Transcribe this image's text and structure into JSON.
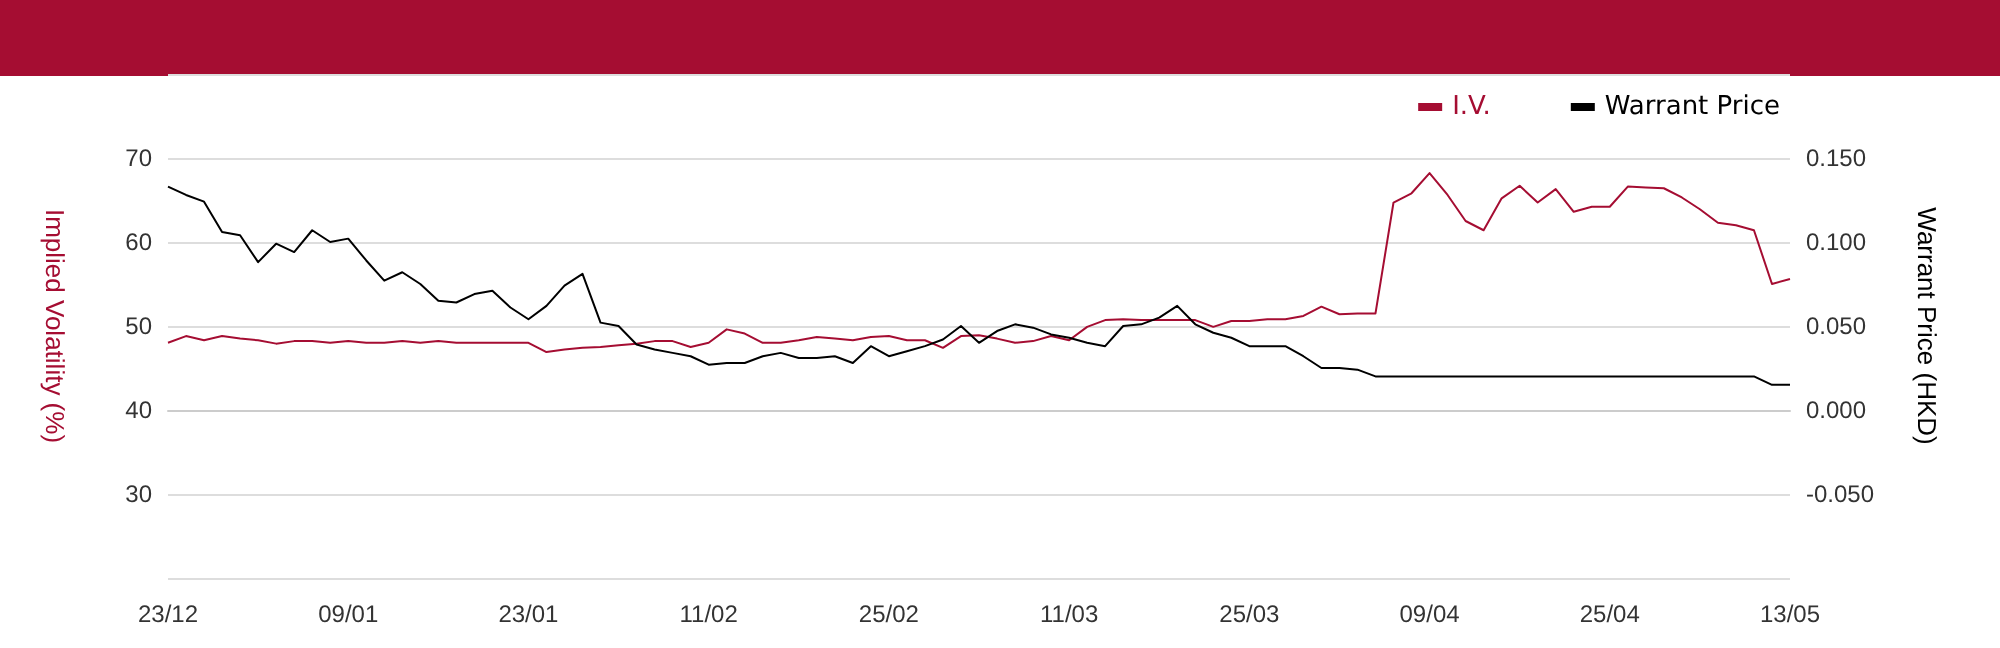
{
  "chart_data": {
    "type": "line",
    "categories": [
      "23/12",
      null,
      null,
      null,
      null,
      null,
      null,
      null,
      null,
      null,
      "09/01",
      null,
      null,
      null,
      null,
      null,
      null,
      null,
      null,
      null,
      "23/01",
      null,
      null,
      null,
      null,
      null,
      null,
      null,
      null,
      null,
      "11/02",
      null,
      null,
      null,
      null,
      null,
      null,
      null,
      null,
      null,
      "25/02",
      null,
      null,
      null,
      null,
      null,
      null,
      null,
      null,
      null,
      "11/03",
      null,
      null,
      null,
      null,
      null,
      null,
      null,
      null,
      null,
      "25/03",
      null,
      null,
      null,
      null,
      null,
      null,
      null,
      null,
      null,
      "09/04",
      null,
      null,
      null,
      null,
      null,
      null,
      null,
      null,
      null,
      "25/04",
      null,
      null,
      null,
      null,
      null,
      null,
      null,
      null,
      null,
      "13/05"
    ],
    "series": [
      {
        "name": "I.V.",
        "color": "#a50d32",
        "values": [
          48.0,
          48.8,
          48.3,
          48.8,
          48.5,
          48.3,
          47.9,
          48.2,
          48.2,
          48.0,
          48.2,
          48.0,
          48.0,
          48.2,
          48.0,
          48.2,
          48.0,
          48.0,
          48.0,
          48.0,
          48.0,
          46.9,
          47.2,
          47.4,
          47.5,
          47.7,
          47.9,
          48.2,
          48.2,
          47.5,
          48.0,
          49.6,
          49.1,
          48.0,
          48.0,
          48.3,
          48.7,
          48.5,
          48.3,
          48.7,
          48.8,
          48.3,
          48.3,
          47.4,
          48.8,
          48.9,
          48.5,
          48.0,
          48.2,
          48.8,
          48.3,
          49.9,
          50.7,
          50.8,
          50.7,
          50.7,
          50.7,
          50.7,
          49.9,
          50.6,
          50.6,
          50.8,
          50.8,
          51.2,
          52.3,
          51.4,
          51.5,
          51.5,
          64.7,
          65.8,
          68.2,
          65.6,
          62.5,
          61.4,
          65.2,
          66.7,
          64.7,
          66.3,
          63.6,
          64.2,
          64.2,
          66.6,
          66.5,
          66.4,
          65.3,
          63.9,
          62.3,
          62.0,
          61.4,
          55.0,
          55.6
        ]
      },
      {
        "name": "Warrant Price",
        "color": "#000000",
        "axis": "y2",
        "values": [
          0.133,
          0.128,
          0.124,
          0.106,
          0.104,
          0.088,
          0.099,
          0.094,
          0.107,
          0.1,
          0.102,
          0.089,
          0.077,
          0.082,
          0.075,
          0.065,
          0.064,
          0.069,
          0.071,
          0.061,
          0.054,
          0.062,
          0.074,
          0.081,
          0.052,
          0.05,
          0.039,
          0.036,
          0.034,
          0.032,
          0.027,
          0.028,
          0.028,
          0.032,
          0.034,
          0.031,
          0.031,
          0.032,
          0.028,
          0.038,
          0.032,
          0.035,
          0.038,
          0.042,
          0.05,
          0.04,
          0.047,
          0.051,
          0.049,
          0.045,
          0.043,
          0.04,
          0.038,
          0.05,
          0.051,
          0.055,
          0.062,
          0.051,
          0.046,
          0.043,
          0.038,
          0.038,
          0.038,
          0.032,
          0.025,
          0.025,
          0.024,
          0.02,
          0.02,
          0.02,
          0.02,
          0.02,
          0.02,
          0.02,
          0.02,
          0.02,
          0.02,
          0.02,
          0.02,
          0.02,
          0.02,
          0.02,
          0.02,
          0.02,
          0.02,
          0.02,
          0.02,
          0.02,
          0.02,
          0.015,
          0.015
        ]
      }
    ],
    "ylabel": "Implied Volatility (%)",
    "y2label": "Warrant Price (HKD)",
    "ylim": [
      20,
      80
    ],
    "yticks": [
      {
        "value": 20,
        "label": null
      },
      30,
      40,
      50,
      60,
      70,
      {
        "value": 80,
        "label": null
      }
    ],
    "y2lim": [
      -0.1,
      0.2
    ],
    "y2ticks": [
      {
        "value": -0.1,
        "label": null
      },
      {
        "value": -0.05,
        "label": "-0.050"
      },
      {
        "value": 0,
        "label": "0.000"
      },
      {
        "value": 0.05,
        "label": "0.050"
      },
      {
        "value": 0.1,
        "label": "0.100"
      },
      {
        "value": 0.15,
        "label": "0.150"
      },
      {
        "value": 0.2,
        "label": null
      }
    ],
    "grid": "y",
    "legend": "top right",
    "marker": "none",
    "line_style": "solid"
  }
}
